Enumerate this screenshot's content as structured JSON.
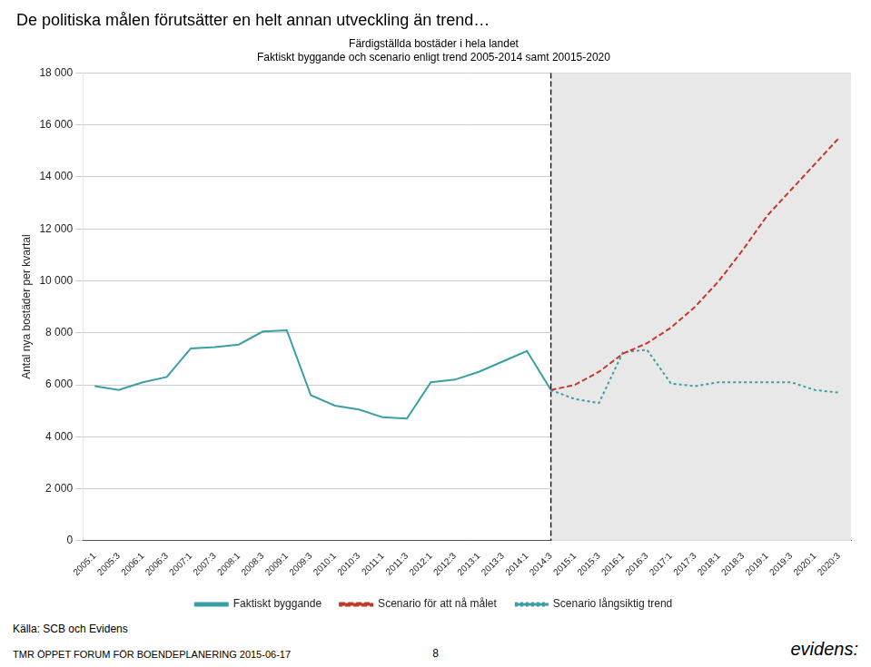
{
  "chart_data": {
    "type": "line",
    "title": "De politiska målen förutsätter en helt annan utveckling än trend…",
    "subtitle": [
      "Färdigställda bostäder i hela landet",
      "Faktiskt byggande och scenario enligt trend 2005-2014 samt 20015-2020"
    ],
    "y_label": "Antal nya bostäder per kvartal",
    "categories": [
      "2005:1",
      "2005:3",
      "2006:1",
      "2006:3",
      "2007:1",
      "2007:3",
      "2008:1",
      "2008:3",
      "2009:1",
      "2009:3",
      "2010:1",
      "2010:3",
      "2011:1",
      "2011:3",
      "2012:1",
      "2012:3",
      "2013:1",
      "2013:3",
      "2014:1",
      "2014:3",
      "2015:1",
      "2015:3",
      "2016:1",
      "2016:3",
      "2017:1",
      "2017:3",
      "2018:1",
      "2018:3",
      "2019:1",
      "2019:3",
      "2020:1",
      "2020:3"
    ],
    "series": [
      {
        "name": "Faktiskt byggande",
        "color": "#3a9fa5",
        "line_style": "solid",
        "values": [
          5950,
          5800,
          6100,
          6300,
          7400,
          7450,
          7550,
          8050,
          8100,
          5600,
          5200,
          5050,
          4750,
          4700,
          6100,
          6200,
          6500,
          6900,
          7300,
          5800,
          null,
          null,
          null,
          null,
          null,
          null,
          null,
          null,
          null,
          null,
          null,
          null
        ]
      },
      {
        "name": "Scenario för att nå målet",
        "color": "#c0392b",
        "line_style": "dashed",
        "values": [
          null,
          null,
          null,
          null,
          null,
          null,
          null,
          null,
          null,
          null,
          null,
          null,
          null,
          null,
          null,
          null,
          null,
          null,
          null,
          5800,
          6000,
          6500,
          7200,
          7600,
          8200,
          9000,
          10000,
          11200,
          12500,
          13500,
          14500,
          15500
        ]
      },
      {
        "name": "Scenario långsiktig trend",
        "color": "#3a9fa5",
        "line_style": "dotted",
        "values": [
          null,
          null,
          null,
          null,
          null,
          null,
          null,
          null,
          null,
          null,
          null,
          null,
          null,
          null,
          null,
          null,
          null,
          null,
          null,
          5800,
          5450,
          5300,
          7250,
          7350,
          6050,
          5950,
          6100,
          6100,
          6100,
          6100,
          5800,
          5700
        ]
      }
    ],
    "ylim": [
      0,
      18000
    ],
    "yticks": [
      0,
      {
        "value": 2000,
        "label": "2 000"
      },
      {
        "value": 4000,
        "label": "4 000"
      },
      {
        "value": 6000,
        "label": "6 000"
      },
      {
        "value": 8000,
        "label": "8 000"
      },
      {
        "value": 10000,
        "label": "10 000"
      },
      {
        "value": 12000,
        "label": "12 000"
      },
      {
        "value": 14000,
        "label": "14 000"
      },
      {
        "value": 16000,
        "label": "16 000"
      },
      {
        "value": 18000,
        "label": "18 000"
      }
    ],
    "grid": "y",
    "legend": "bottom",
    "annotations": [
      {
        "x": "2014:3",
        "line_style": "dashed",
        "color": "#e8e8e8"
      },
      {
        "text": "Källa: SCB och Evidens"
      },
      {
        "text": "TMR ÖPPET FORUM FÖR BOENDEPLANERING 2015-06-17"
      },
      {
        "text": "8"
      },
      {
        "text": "evidens:"
      }
    ]
  }
}
